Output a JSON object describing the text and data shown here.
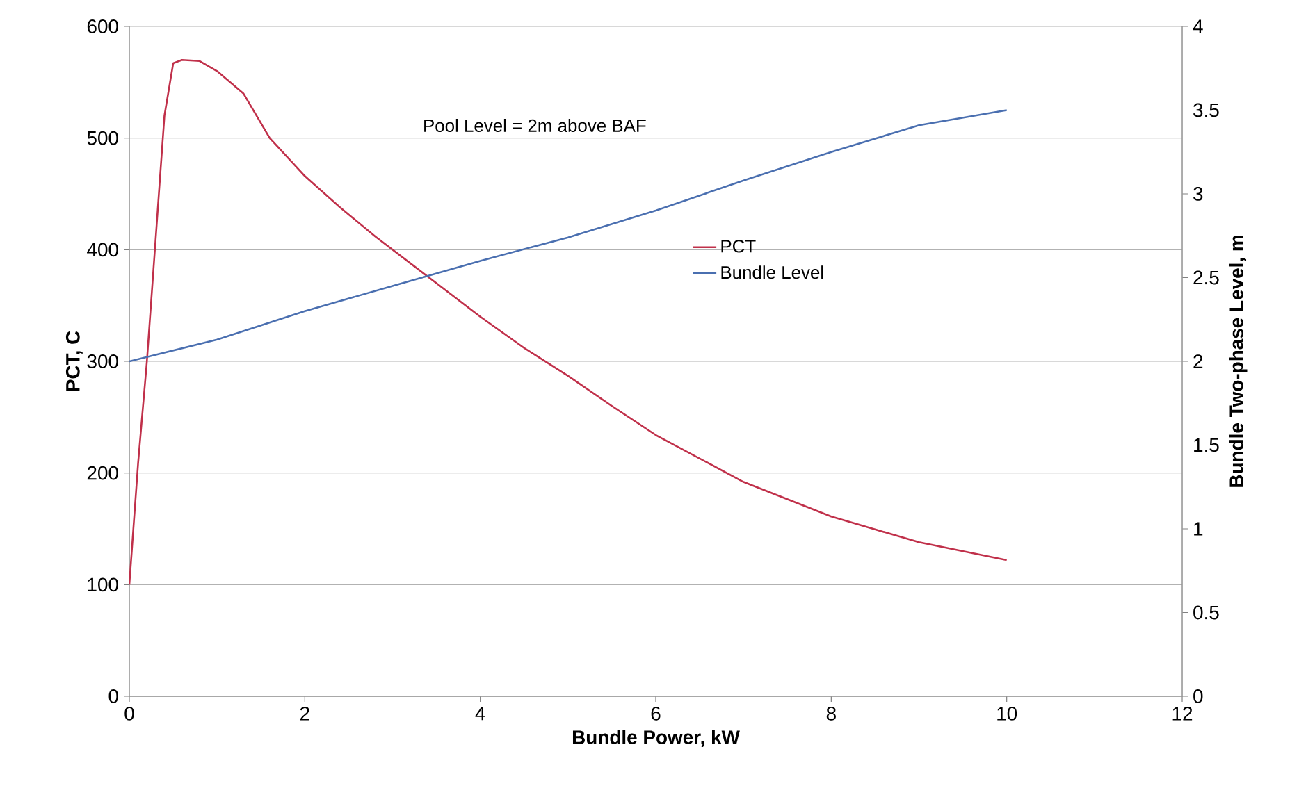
{
  "chart_data": {
    "type": "line",
    "xlabel": "Bundle Power, kW",
    "ylabel": "PCT, C",
    "y2label": "Bundle Two-phase Level, m",
    "xlim": [
      0,
      12
    ],
    "xticks": [
      0,
      2,
      4,
      6,
      8,
      10,
      12
    ],
    "ylim": [
      0,
      600
    ],
    "yticks": [
      0,
      100,
      200,
      300,
      400,
      500,
      600
    ],
    "y2lim": [
      0,
      4
    ],
    "y2ticks": [
      0,
      0.5,
      1,
      1.5,
      2,
      2.5,
      3,
      3.5,
      4
    ],
    "grid": "y",
    "legend": "center",
    "annotations": [
      "Pool Level = 2m above BAF"
    ],
    "series": [
      {
        "name": "PCT",
        "color": "#c0304a",
        "axis": "y",
        "x": [
          0,
          0.1,
          0.2,
          0.3,
          0.4,
          0.5,
          0.6,
          0.8,
          1.0,
          1.3,
          1.6,
          2,
          2.4,
          2.8,
          3.2,
          3.5,
          4,
          4.5,
          5,
          5.5,
          6,
          7,
          8,
          9,
          10
        ],
        "values": [
          100,
          209,
          300,
          410,
          520,
          567,
          570,
          569,
          560,
          540,
          500,
          466,
          438,
          412,
          388,
          370,
          340,
          312,
          287,
          260,
          234,
          192,
          161,
          138,
          122
        ]
      },
      {
        "name": "Bundle Level",
        "color": "#4a6fb0",
        "axis": "y2",
        "x": [
          0,
          1,
          2,
          3,
          4,
          5,
          6,
          7,
          8,
          9,
          10
        ],
        "values": [
          2.0,
          2.13,
          2.3,
          2.45,
          2.6,
          2.74,
          2.9,
          3.08,
          3.25,
          3.41,
          3.5
        ]
      }
    ]
  }
}
